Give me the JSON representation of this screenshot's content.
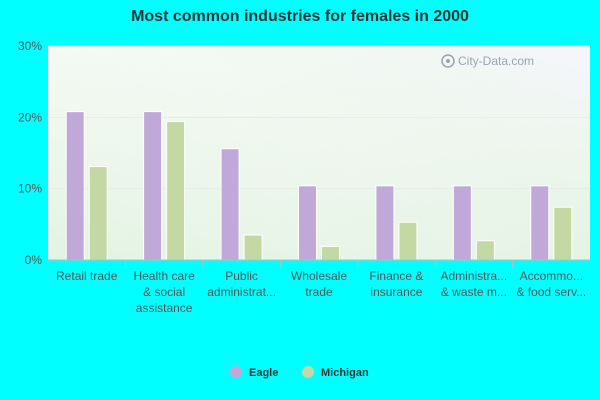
{
  "chart_data": {
    "type": "bar",
    "title": "Most common industries for females in 2000",
    "categories": [
      [
        "Retail trade"
      ],
      [
        "Health care",
        "& social",
        "assistance"
      ],
      [
        "Public",
        "administrat..."
      ],
      [
        "Wholesale",
        "trade"
      ],
      [
        "Finance &",
        "insurance"
      ],
      [
        "Administra...",
        "& waste m..."
      ],
      [
        "Accommo...",
        "& food serv..."
      ]
    ],
    "series": [
      {
        "name": "Eagle",
        "color": "#c0a8d8",
        "values": [
          20.8,
          20.8,
          15.6,
          10.4,
          10.4,
          10.4,
          10.4
        ]
      },
      {
        "name": "Michigan",
        "color": "#c4d8a4",
        "values": [
          13.1,
          19.4,
          3.5,
          1.9,
          5.3,
          2.7,
          7.4
        ]
      }
    ],
    "ylim": [
      0,
      30
    ],
    "yticks": [
      "0%",
      "10%",
      "20%",
      "30%"
    ],
    "legend": "bottom",
    "grid": true
  },
  "watermark": "City-Data.com"
}
